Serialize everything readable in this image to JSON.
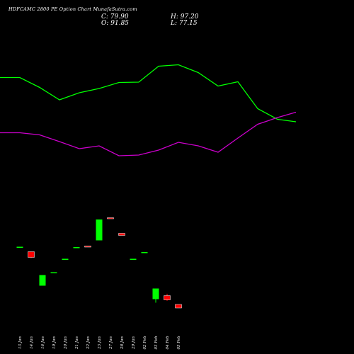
{
  "header": {
    "title": "HDFCAMC 2800 PE Option  Chart MunafaSutra.com",
    "close": "C: 79.90",
    "open": "O: 91.85",
    "high": "H: 97.20",
    "low": "L: 77.15"
  },
  "colors": {
    "background": "#000000",
    "up": "#00ff00",
    "down": "#ff0000",
    "line_green": "#00ff00",
    "line_magenta": "#cc00cc",
    "text": "#ffffff"
  },
  "chart_data": {
    "type": "candlestick",
    "categories": [
      "13 Jan",
      "14 Jan",
      "16 Jan",
      "19 Jan",
      "20 Jan",
      "21 Jan",
      "22 Jan",
      "23 Jan",
      "27 Jan",
      "28 Jan",
      "29 Jan",
      "02 Feb",
      "03 Feb",
      "04 Feb",
      "05 Feb"
    ],
    "candles": [
      {
        "open": 230,
        "close": 230,
        "high": 230,
        "low": 230,
        "dir": "up"
      },
      {
        "open": 216,
        "close": 200,
        "high": 216,
        "low": 198,
        "dir": "down"
      },
      {
        "open": 120,
        "close": 150,
        "high": 150,
        "low": 120,
        "dir": "up"
      },
      {
        "open": 158,
        "close": 158,
        "high": 158,
        "low": 158,
        "dir": "up"
      },
      {
        "open": 196,
        "close": 196,
        "high": 196,
        "low": 196,
        "dir": "up"
      },
      {
        "open": 229,
        "close": 229,
        "high": 229,
        "low": 229,
        "dir": "up"
      },
      {
        "open": 232,
        "close": 229,
        "high": 232,
        "low": 229,
        "dir": "down"
      },
      {
        "open": 248,
        "close": 307,
        "high": 307,
        "low": 248,
        "dir": "up"
      },
      {
        "open": 312,
        "close": 309,
        "high": 312,
        "low": 309,
        "dir": "down"
      },
      {
        "open": 268,
        "close": 262,
        "high": 268,
        "low": 262,
        "dir": "down"
      },
      {
        "open": 196,
        "close": 196,
        "high": 196,
        "low": 196,
        "dir": "up"
      },
      {
        "open": 213,
        "close": 215,
        "high": 215,
        "low": 213,
        "dir": "up"
      },
      {
        "open": 82,
        "close": 112,
        "high": 112,
        "low": 72,
        "dir": "up"
      },
      {
        "open": 91.85,
        "close": 79.9,
        "high": 97.2,
        "low": 77.15,
        "dir": "down"
      },
      {
        "open": 67,
        "close": 57,
        "high": 67,
        "low": 57,
        "dir": "down"
      }
    ],
    "series": [
      {
        "key": "green",
        "x": [
          0,
          28,
          56,
          84,
          112,
          140,
          168,
          196,
          224,
          252,
          280,
          308,
          336,
          364,
          392,
          418
        ],
        "values": [
          708,
          708,
          680,
          645,
          665,
          677,
          694,
          695,
          740,
          744,
          722,
          684,
          696,
          620,
          590,
          583
        ]
      },
      {
        "key": "magenta",
        "x": [
          0,
          28,
          56,
          84,
          112,
          140,
          168,
          196,
          224,
          252,
          280,
          308,
          336,
          364,
          392,
          418
        ],
        "values": [
          552,
          552,
          546,
          527,
          507,
          515,
          487,
          489,
          503,
          525,
          515,
          497,
          537,
          576,
          595,
          610
        ]
      }
    ],
    "ylim": [
      0,
      800
    ]
  }
}
